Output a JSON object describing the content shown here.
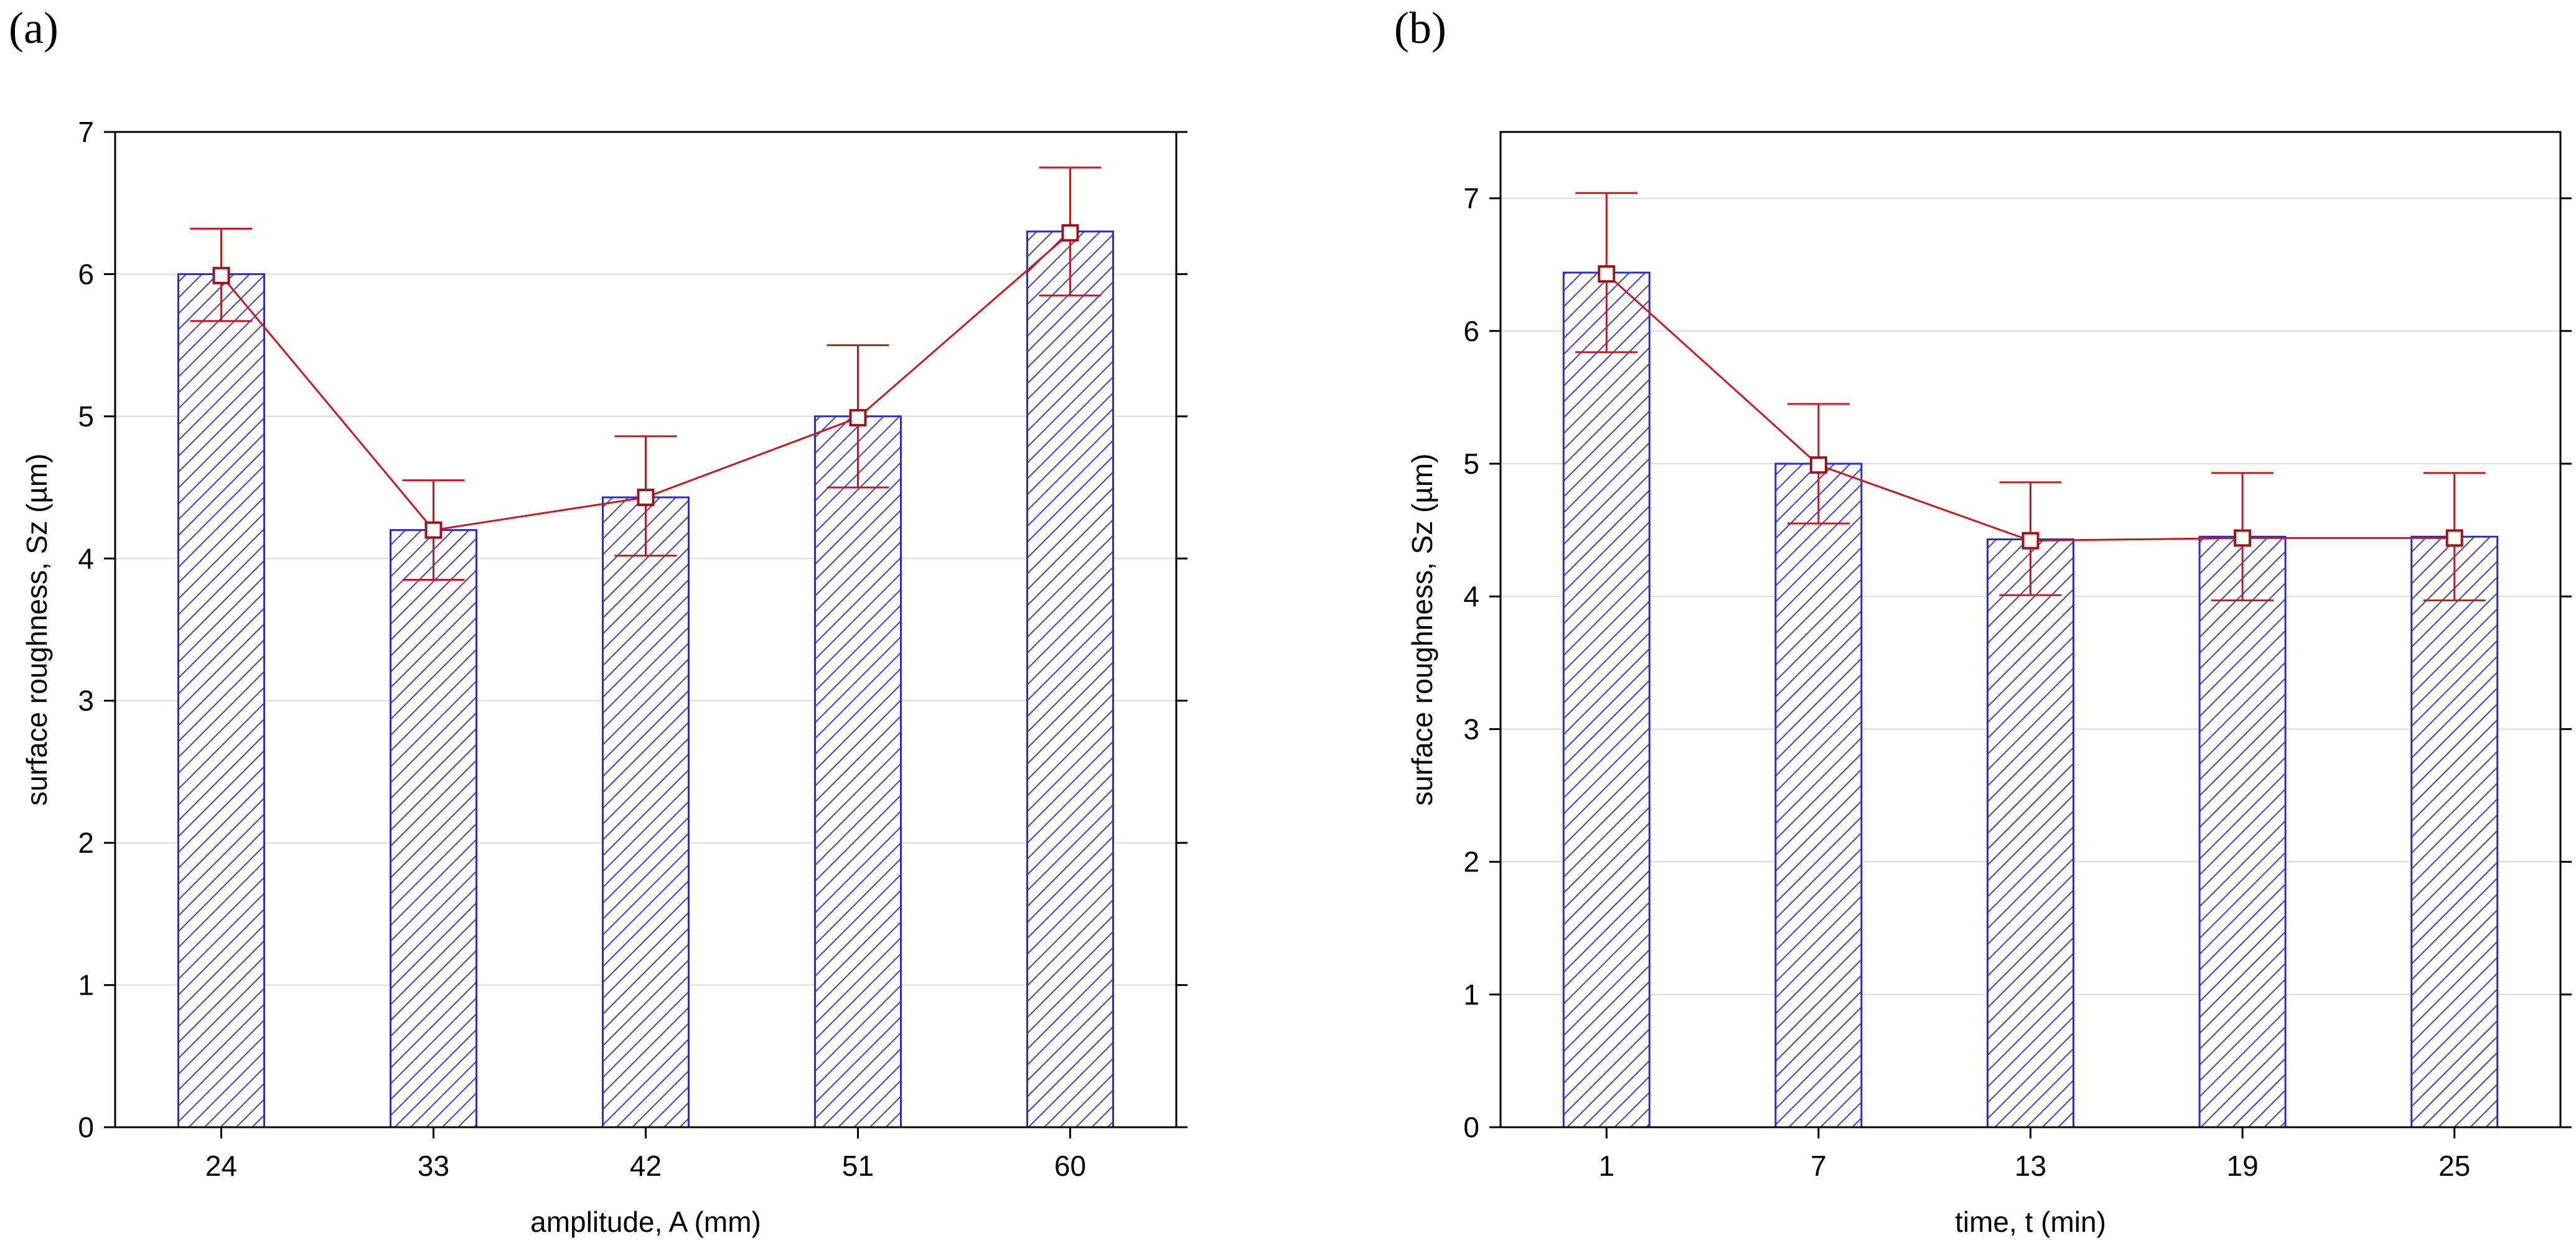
{
  "panels": [
    {
      "id": "a",
      "label": "(a)"
    },
    {
      "id": "b",
      "label": "(b)"
    }
  ],
  "colors": {
    "bar_stroke": "#2b2bd6",
    "hatch": "#3b3be0",
    "line": "#c8191e",
    "marker": "#a01418",
    "grid": "#d9d9d9",
    "frame": "#000000"
  },
  "chart_data": [
    {
      "type": "bar",
      "title": "",
      "xlabel": "amplitude, A (mm)",
      "ylabel": "surface roughness, Sz (µm)",
      "categories": [
        "24",
        "33",
        "42",
        "51",
        "60"
      ],
      "values": [
        6.0,
        4.2,
        4.43,
        5.0,
        6.3
      ],
      "means": [
        5.99,
        4.2,
        4.43,
        4.99,
        6.29
      ],
      "err_low": [
        5.67,
        3.85,
        4.02,
        4.5,
        5.85
      ],
      "err_high": [
        6.32,
        4.55,
        4.86,
        5.5,
        6.75
      ],
      "ylim": [
        0,
        7
      ],
      "yticks": [
        "0",
        "1",
        "2",
        "3",
        "4",
        "5",
        "6",
        "7"
      ],
      "grid": true
    },
    {
      "type": "bar",
      "title": "",
      "xlabel": "time, t (min)",
      "ylabel": "surface roughness, Sz (µm)",
      "categories": [
        "1",
        "7",
        "13",
        "19",
        "25"
      ],
      "values": [
        6.44,
        5.0,
        4.43,
        4.45,
        4.45
      ],
      "means": [
        6.43,
        4.99,
        4.42,
        4.44,
        4.44
      ],
      "err_low": [
        5.84,
        4.55,
        4.01,
        3.97,
        3.97
      ],
      "err_high": [
        7.04,
        5.45,
        4.86,
        4.93,
        4.93
      ],
      "ylim": [
        0,
        7.5
      ],
      "yticks": [
        "0",
        "1",
        "2",
        "3",
        "4",
        "5",
        "6",
        "7"
      ],
      "grid": true
    }
  ]
}
